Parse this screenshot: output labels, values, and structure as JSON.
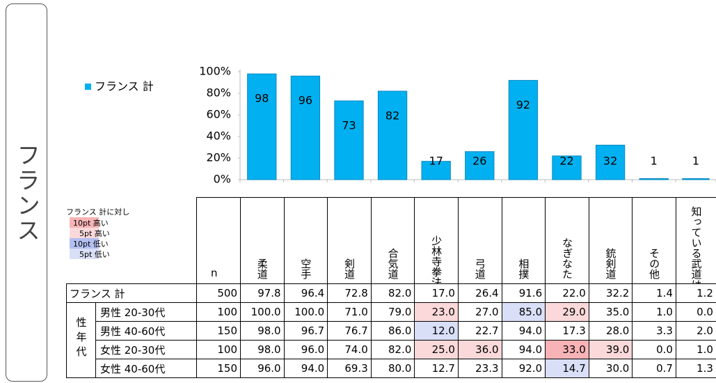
{
  "side_label": "フランス",
  "chart_data": {
    "type": "bar",
    "categories": [
      "柔道",
      "空手",
      "剣道",
      "合気道",
      "少林寺拳法",
      "弓道",
      "相撲",
      "なぎなた",
      "銃剣道",
      "その他",
      "知っている武道はない"
    ],
    "series": [
      {
        "name": "フランス 計",
        "color": "#00b0f0",
        "values": [
          98,
          96,
          73,
          82,
          17,
          26,
          92,
          22,
          32,
          1,
          1
        ]
      }
    ],
    "ylim": [
      0,
      100
    ],
    "yticks": [
      {
        "value": 0,
        "label": "0%"
      },
      {
        "value": 20,
        "label": "20%"
      },
      {
        "value": 40,
        "label": "40%"
      },
      {
        "value": 60,
        "label": "60%"
      },
      {
        "value": 80,
        "label": "80%"
      },
      {
        "value": 100,
        "label": "100%"
      }
    ],
    "legend": "top-left"
  },
  "table": {
    "legend_title": "フランス 計に対し",
    "legend_items": [
      "10pt 高い",
      "5pt 高い",
      "10pt 低い",
      "5pt 低い"
    ],
    "legend_colors": [
      "#f7b3b5",
      "#fbd9da",
      "#b3bff0",
      "#d8dff7"
    ],
    "n_header": "n",
    "group_label": "性年代",
    "rows": [
      {
        "label": "フランス 計",
        "n": "500",
        "values": [
          "97.8",
          "96.4",
          "72.8",
          "82.0",
          "17.0",
          "26.4",
          "91.6",
          "22.0",
          "32.2",
          "1.4",
          "1.2"
        ]
      },
      {
        "label": "男性 20-30代",
        "n": "100",
        "values": [
          "100.0",
          "100.0",
          "71.0",
          "79.0",
          "23.0",
          "27.0",
          "85.0",
          "29.0",
          "35.0",
          "1.0",
          "0.0"
        ]
      },
      {
        "label": "男性 40-60代",
        "n": "150",
        "values": [
          "98.0",
          "96.7",
          "76.7",
          "86.0",
          "12.0",
          "22.7",
          "94.0",
          "17.3",
          "28.0",
          "3.3",
          "2.0"
        ]
      },
      {
        "label": "女性 20-30代",
        "n": "100",
        "values": [
          "98.0",
          "96.0",
          "74.0",
          "82.0",
          "25.0",
          "36.0",
          "94.0",
          "33.0",
          "39.0",
          "0.0",
          "1.0"
        ]
      },
      {
        "label": "女性 40-60代",
        "n": "150",
        "values": [
          "96.0",
          "94.0",
          "69.3",
          "80.0",
          "12.7",
          "23.3",
          "92.0",
          "14.7",
          "30.0",
          "0.7",
          "1.3"
        ]
      }
    ]
  }
}
